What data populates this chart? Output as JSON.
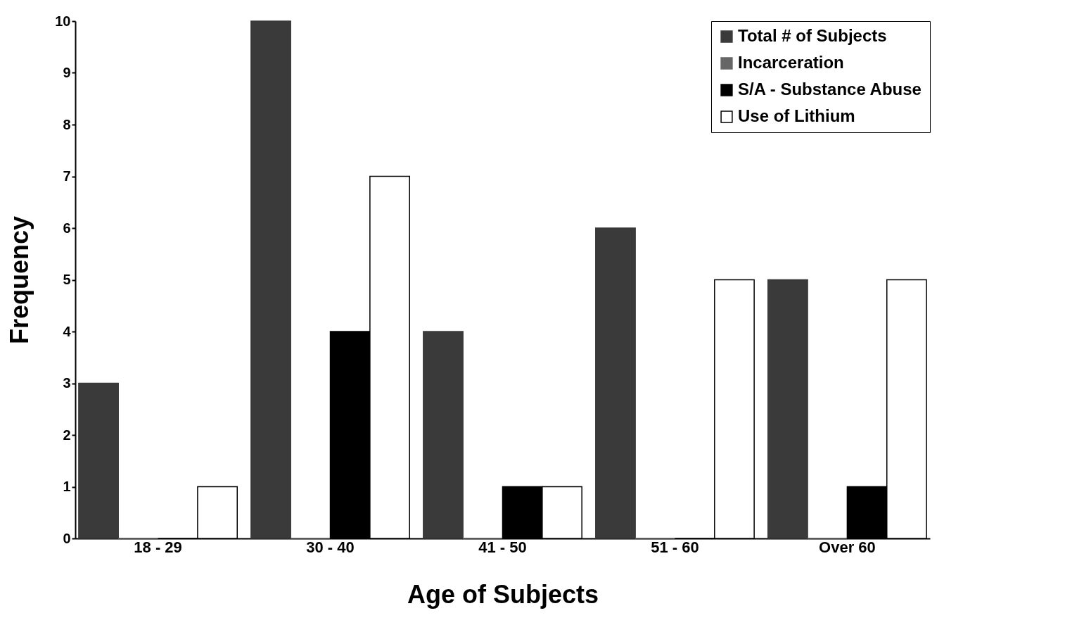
{
  "chart_data": {
    "type": "bar",
    "xlabel": "Age of Subjects",
    "ylabel": "Frequency",
    "categories": [
      "18 - 29",
      "30 - 40",
      "41 - 50",
      "51 - 60",
      "Over 60"
    ],
    "series": [
      {
        "name": "Total # of Subjects",
        "color": "#3a3a3a",
        "values": [
          3,
          10,
          4,
          6,
          5
        ]
      },
      {
        "name": "Incarceration",
        "color": "#666666",
        "values": [
          0,
          0,
          0,
          0,
          0
        ]
      },
      {
        "name": "S/A - Substance Abuse",
        "color": "#000000",
        "values": [
          0,
          4,
          1,
          0,
          1
        ]
      },
      {
        "name": "Use of Lithium",
        "color": "#ffffff",
        "values": [
          1,
          7,
          1,
          5,
          5
        ]
      }
    ],
    "ylim": [
      0,
      10
    ],
    "yticks": [
      0,
      1,
      2,
      3,
      4,
      5,
      6,
      7,
      8,
      9,
      10
    ],
    "grid": false,
    "legend": "top right"
  }
}
